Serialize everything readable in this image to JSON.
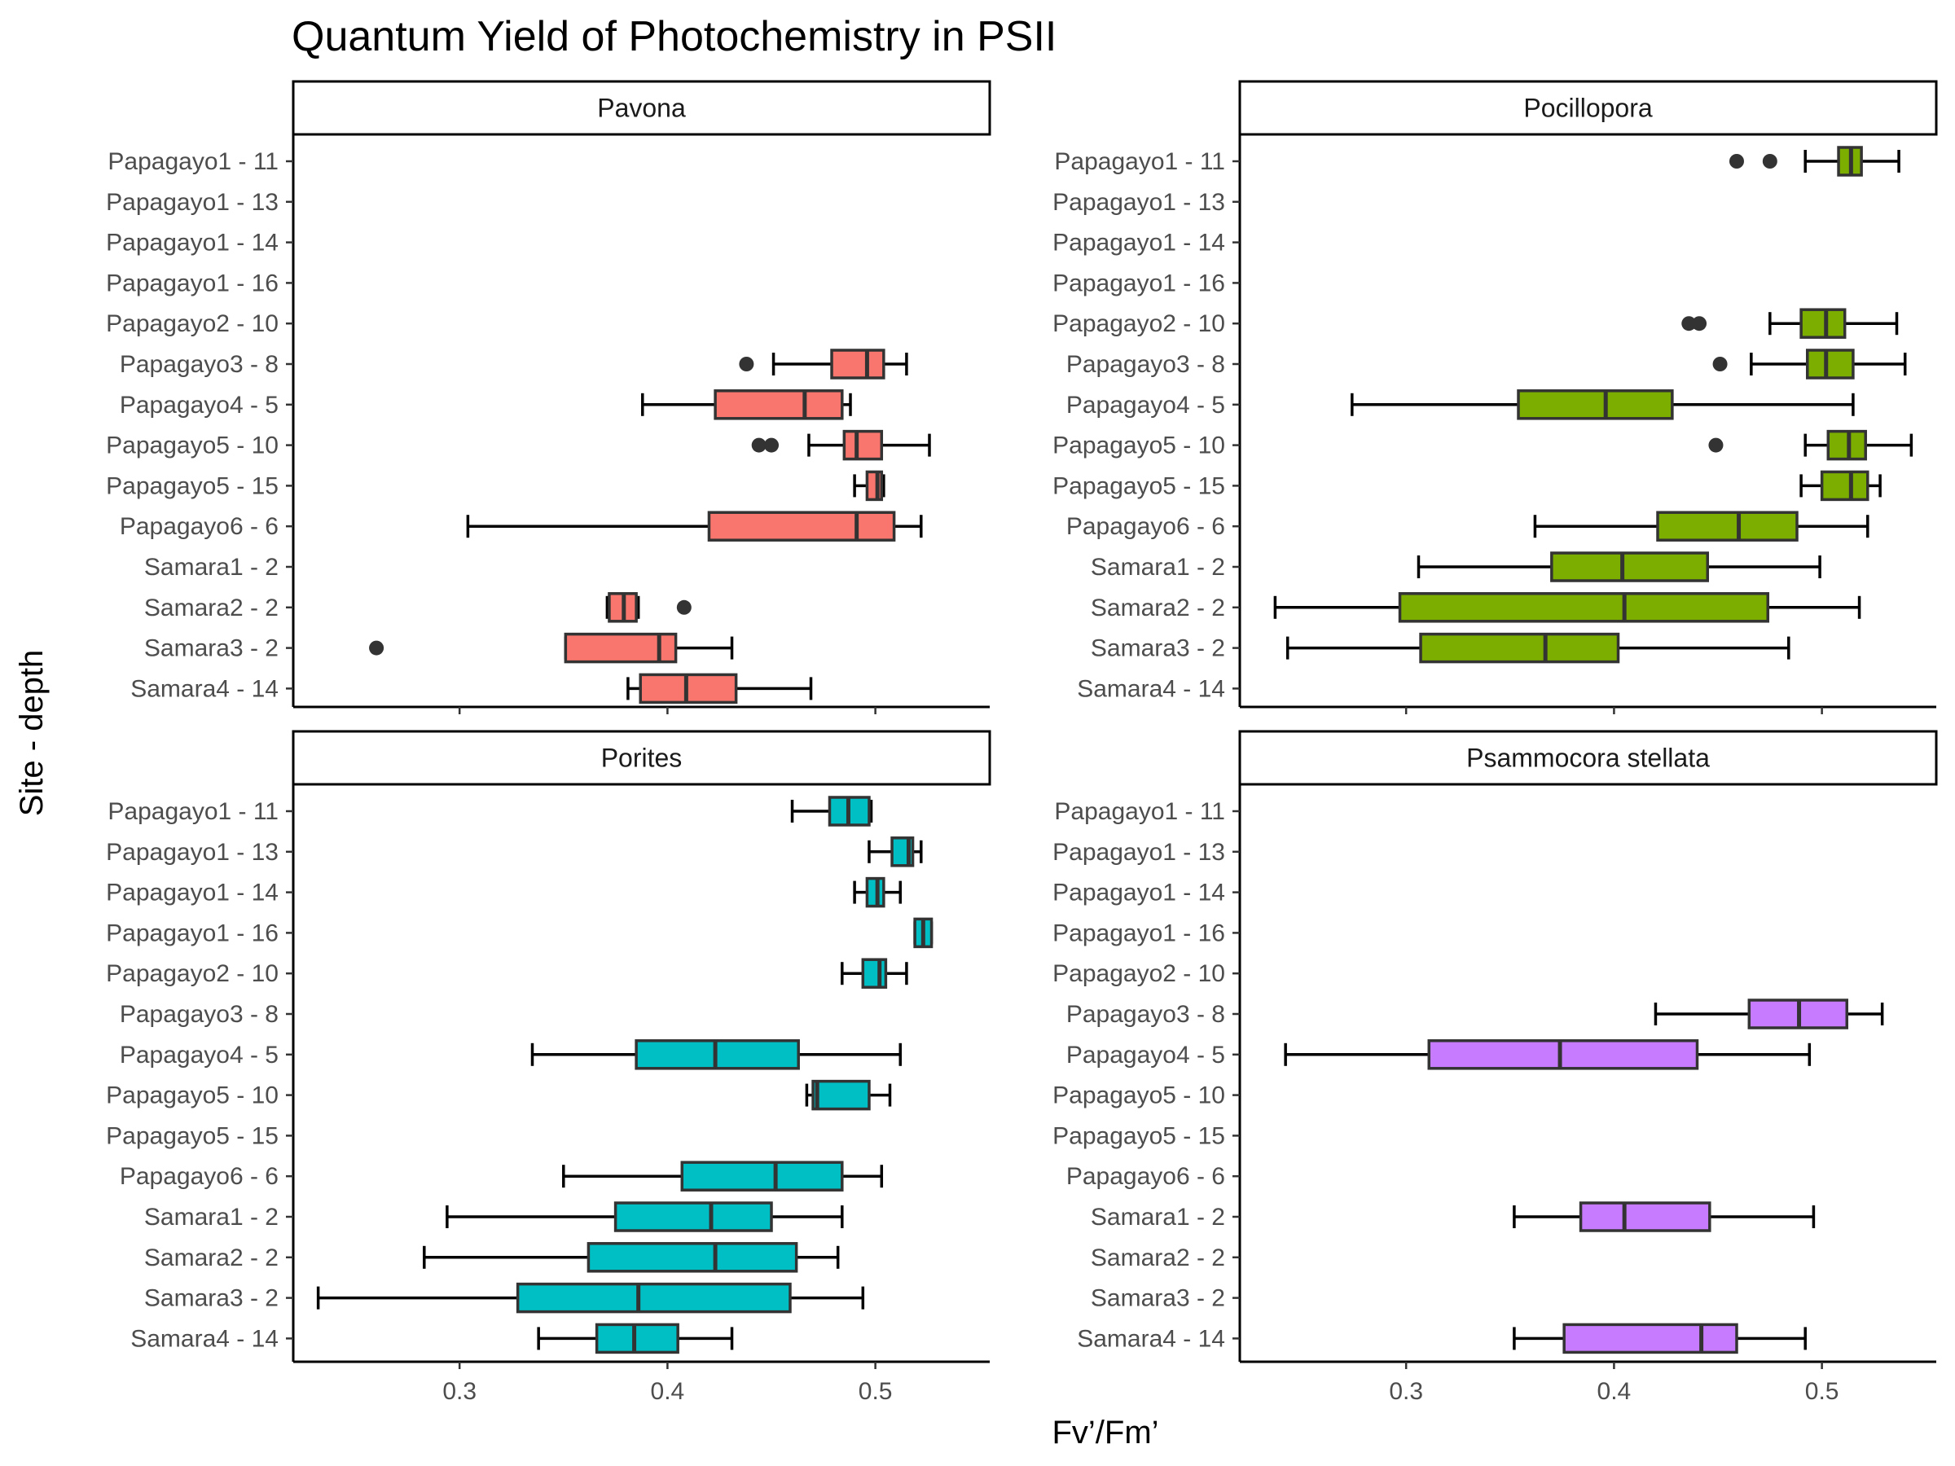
{
  "chart_data": {
    "type": "boxplot",
    "title": "Quantum Yield of Photochemistry in PSII",
    "xlabel": "Fv’/Fm’",
    "ylabel": "Site - depth",
    "xlim": [
      0.22,
      0.555
    ],
    "x_ticks": [
      "0.3",
      "0.4",
      "0.5"
    ],
    "grid": false,
    "legend": "none",
    "categories": [
      "Papagayo1 - 11",
      "Papagayo1 - 13",
      "Papagayo1 - 14",
      "Papagayo1 - 16",
      "Papagayo2 - 10",
      "Papagayo3 - 8",
      "Papagayo4 - 5",
      "Papagayo5 - 10",
      "Papagayo5 - 15",
      "Papagayo6 - 6",
      "Samara1 - 2",
      "Samara2 - 2",
      "Samara3 - 2",
      "Samara4 - 14"
    ],
    "panels": [
      {
        "name": "Pavona",
        "color": "#F8766D",
        "boxes": [
          {
            "category": "Papagayo3 - 8",
            "whisker_low": 0.451,
            "q1": 0.479,
            "median": 0.496,
            "q3": 0.504,
            "whisker_high": 0.515,
            "outliers": [
              0.438
            ]
          },
          {
            "category": "Papagayo4 - 5",
            "whisker_low": 0.388,
            "q1": 0.423,
            "median": 0.466,
            "q3": 0.484,
            "whisker_high": 0.488,
            "outliers": []
          },
          {
            "category": "Papagayo5 - 10",
            "whisker_low": 0.468,
            "q1": 0.485,
            "median": 0.491,
            "q3": 0.503,
            "whisker_high": 0.526,
            "outliers": [
              0.444,
              0.45
            ]
          },
          {
            "category": "Papagayo5 - 15",
            "whisker_low": 0.49,
            "q1": 0.496,
            "median": 0.501,
            "q3": 0.503,
            "whisker_high": 0.504,
            "outliers": []
          },
          {
            "category": "Papagayo6 - 6",
            "whisker_low": 0.304,
            "q1": 0.42,
            "median": 0.491,
            "q3": 0.509,
            "whisker_high": 0.522,
            "outliers": []
          },
          {
            "category": "Samara2 - 2",
            "whisker_low": 0.371,
            "q1": 0.372,
            "median": 0.379,
            "q3": 0.385,
            "whisker_high": 0.386,
            "outliers": [
              0.408
            ]
          },
          {
            "category": "Samara3 - 2",
            "whisker_low": 0.351,
            "q1": 0.351,
            "median": 0.396,
            "q3": 0.404,
            "whisker_high": 0.431,
            "outliers": [
              0.26
            ]
          },
          {
            "category": "Samara4 - 14",
            "whisker_low": 0.381,
            "q1": 0.387,
            "median": 0.409,
            "q3": 0.433,
            "whisker_high": 0.469,
            "outliers": []
          }
        ]
      },
      {
        "name": "Pocillopora",
        "color": "#7CAE00",
        "boxes": [
          {
            "category": "Papagayo1 - 11",
            "whisker_low": 0.492,
            "q1": 0.508,
            "median": 0.514,
            "q3": 0.519,
            "whisker_high": 0.537,
            "outliers": [
              0.459,
              0.475
            ]
          },
          {
            "category": "Papagayo2 - 10",
            "whisker_low": 0.475,
            "q1": 0.49,
            "median": 0.502,
            "q3": 0.511,
            "whisker_high": 0.536,
            "outliers": [
              0.436,
              0.441
            ]
          },
          {
            "category": "Papagayo3 - 8",
            "whisker_low": 0.466,
            "q1": 0.493,
            "median": 0.502,
            "q3": 0.515,
            "whisker_high": 0.54,
            "outliers": [
              0.451
            ]
          },
          {
            "category": "Papagayo4 - 5",
            "whisker_low": 0.274,
            "q1": 0.354,
            "median": 0.396,
            "q3": 0.428,
            "whisker_high": 0.515,
            "outliers": []
          },
          {
            "category": "Papagayo5 - 10",
            "whisker_low": 0.492,
            "q1": 0.503,
            "median": 0.513,
            "q3": 0.521,
            "whisker_high": 0.543,
            "outliers": [
              0.449
            ]
          },
          {
            "category": "Papagayo5 - 15",
            "whisker_low": 0.49,
            "q1": 0.5,
            "median": 0.514,
            "q3": 0.522,
            "whisker_high": 0.528,
            "outliers": []
          },
          {
            "category": "Papagayo6 - 6",
            "whisker_low": 0.362,
            "q1": 0.421,
            "median": 0.46,
            "q3": 0.488,
            "whisker_high": 0.522,
            "outliers": []
          },
          {
            "category": "Samara1 - 2",
            "whisker_low": 0.306,
            "q1": 0.37,
            "median": 0.404,
            "q3": 0.445,
            "whisker_high": 0.499,
            "outliers": []
          },
          {
            "category": "Samara2 - 2",
            "whisker_low": 0.237,
            "q1": 0.297,
            "median": 0.405,
            "q3": 0.474,
            "whisker_high": 0.518,
            "outliers": []
          },
          {
            "category": "Samara3 - 2",
            "whisker_low": 0.243,
            "q1": 0.307,
            "median": 0.367,
            "q3": 0.402,
            "whisker_high": 0.484,
            "outliers": []
          }
        ]
      },
      {
        "name": "Porites",
        "color": "#00BFC4",
        "boxes": [
          {
            "category": "Papagayo1 - 11",
            "whisker_low": 0.46,
            "q1": 0.478,
            "median": 0.487,
            "q3": 0.497,
            "whisker_high": 0.498,
            "outliers": []
          },
          {
            "category": "Papagayo1 - 13",
            "whisker_low": 0.497,
            "q1": 0.508,
            "median": 0.516,
            "q3": 0.518,
            "whisker_high": 0.522,
            "outliers": []
          },
          {
            "category": "Papagayo1 - 14",
            "whisker_low": 0.49,
            "q1": 0.496,
            "median": 0.501,
            "q3": 0.504,
            "whisker_high": 0.512,
            "outliers": []
          },
          {
            "category": "Papagayo1 - 16",
            "whisker_low": 0.519,
            "q1": 0.519,
            "median": 0.523,
            "q3": 0.527,
            "whisker_high": 0.527,
            "outliers": []
          },
          {
            "category": "Papagayo2 - 10",
            "whisker_low": 0.484,
            "q1": 0.494,
            "median": 0.502,
            "q3": 0.505,
            "whisker_high": 0.515,
            "outliers": []
          },
          {
            "category": "Papagayo4 - 5",
            "whisker_low": 0.335,
            "q1": 0.385,
            "median": 0.423,
            "q3": 0.463,
            "whisker_high": 0.512,
            "outliers": []
          },
          {
            "category": "Papagayo5 - 10",
            "whisker_low": 0.467,
            "q1": 0.47,
            "median": 0.472,
            "q3": 0.497,
            "whisker_high": 0.507,
            "outliers": []
          },
          {
            "category": "Papagayo6 - 6",
            "whisker_low": 0.35,
            "q1": 0.407,
            "median": 0.452,
            "q3": 0.484,
            "whisker_high": 0.503,
            "outliers": []
          },
          {
            "category": "Samara1 - 2",
            "whisker_low": 0.294,
            "q1": 0.375,
            "median": 0.421,
            "q3": 0.45,
            "whisker_high": 0.484,
            "outliers": []
          },
          {
            "category": "Samara2 - 2",
            "whisker_low": 0.283,
            "q1": 0.362,
            "median": 0.423,
            "q3": 0.462,
            "whisker_high": 0.482,
            "outliers": []
          },
          {
            "category": "Samara3 - 2",
            "whisker_low": 0.232,
            "q1": 0.328,
            "median": 0.386,
            "q3": 0.459,
            "whisker_high": 0.494,
            "outliers": []
          },
          {
            "category": "Samara4 - 14",
            "whisker_low": 0.338,
            "q1": 0.366,
            "median": 0.384,
            "q3": 0.405,
            "whisker_high": 0.431,
            "outliers": []
          }
        ]
      },
      {
        "name": "Psammocora stellata",
        "color": "#C77CFF",
        "boxes": [
          {
            "category": "Papagayo3 - 8",
            "whisker_low": 0.42,
            "q1": 0.465,
            "median": 0.489,
            "q3": 0.512,
            "whisker_high": 0.529,
            "outliers": []
          },
          {
            "category": "Papagayo4 - 5",
            "whisker_low": 0.242,
            "q1": 0.311,
            "median": 0.374,
            "q3": 0.44,
            "whisker_high": 0.494,
            "outliers": []
          },
          {
            "category": "Samara1 - 2",
            "whisker_low": 0.352,
            "q1": 0.384,
            "median": 0.405,
            "q3": 0.446,
            "whisker_high": 0.496,
            "outliers": []
          },
          {
            "category": "Samara4 - 14",
            "whisker_low": 0.352,
            "q1": 0.376,
            "median": 0.442,
            "q3": 0.459,
            "whisker_high": 0.492,
            "outliers": []
          }
        ]
      }
    ]
  }
}
